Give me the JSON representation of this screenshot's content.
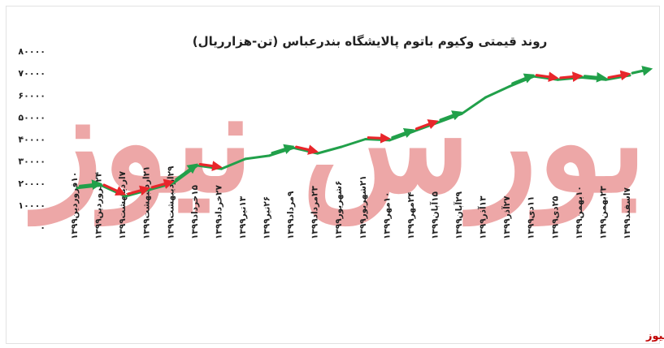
{
  "chart_data": {
    "type": "line",
    "title": "روند قیمتی وکیوم باتوم پالایشگاه بندرعباس (تن-هزارریال)",
    "xlabel": "",
    "ylabel": "",
    "ylim": [
      0,
      80000
    ],
    "yticks": [
      "۸۰۰۰۰",
      "۷۰۰۰۰",
      "۶۰۰۰۰",
      "۵۰۰۰۰",
      "۴۰۰۰۰",
      "۳۰۰۰۰",
      "۲۰۰۰۰",
      "۱۰۰۰۰",
      "۰"
    ],
    "categories": [
      "۱۰فروردین۱۳۹۹",
      "۲۴فروردین۱۳۹۹",
      "۷اردیبهشت۱۳۹۹",
      "۲۱اردیبهشت۱۳۹۹",
      "۲۹اردیبهشت۱۳۹۹",
      "۱۵خرداد۱۳۹۹",
      "۲۷خرداد۱۳۹۹",
      "۱۳تیر۱۳۹۹",
      "۲۶تیر۱۳۹۹",
      "۹مرداد۱۳۹۹",
      "۲۳مرداد۱۳۹۹",
      "۶شهریور۱۳۹۹",
      "۲۱شهریور۱۳۹۹",
      "۱۰مهر۱۳۹۹",
      "۲۴مهر۱۳۹۹",
      "۱۵آبان۱۳۹۹",
      "۲۹آبان۱۳۹۹",
      "۱۳آذر۱۳۹۹",
      "۲۷آذر۱۳۹۹",
      "۱۱دی۱۳۹۹",
      "۲۵دی۱۳۹۹",
      "۱۰بهمن۱۳۹۹",
      "۲۳بهمن۱۳۹۹",
      "۷اسفند۱۳۹۹"
    ],
    "series": [
      {
        "name": "",
        "color": "#21a04a",
        "values": [
          17800,
          19000,
          14000,
          17000,
          20000,
          28000,
          26500,
          31000,
          32500,
          36000,
          33500,
          36500,
          40000,
          39500,
          43500,
          47500,
          51500,
          59000,
          64000,
          68500,
          67000,
          68000,
          67000,
          69000
        ]
      }
    ],
    "grid": false,
    "legend": "none",
    "arrows": [
      {
        "from": 0,
        "to": 1,
        "color": "#21a04a"
      },
      {
        "from": 1,
        "to": 2,
        "color": "#e8262b"
      },
      {
        "from": 2,
        "to": 3,
        "color": "#e8262b"
      },
      {
        "from": 3,
        "to": 4,
        "color": "#e8262b"
      },
      {
        "from": 4,
        "to": 5,
        "color": "#21a04a"
      },
      {
        "from": 5,
        "to": 6,
        "color": "#e8262b"
      },
      {
        "from": 8,
        "to": 9,
        "color": "#21a04a"
      },
      {
        "from": 9,
        "to": 10,
        "color": "#e8262b"
      },
      {
        "from": 12,
        "to": 13,
        "color": "#e8262b"
      },
      {
        "from": 13,
        "to": 14,
        "color": "#21a04a"
      },
      {
        "from": 14,
        "to": 15,
        "color": "#e8262b"
      },
      {
        "from": 15,
        "to": 16,
        "color": "#21a04a"
      },
      {
        "from": 18,
        "to": 19,
        "color": "#21a04a"
      },
      {
        "from": 19,
        "to": 20,
        "color": "#e8262b"
      },
      {
        "from": 20,
        "to": 21,
        "color": "#e8262b"
      },
      {
        "from": 21,
        "to": 22,
        "color": "#21a04a"
      },
      {
        "from": 22,
        "to": 23,
        "color": "#e8262b"
      },
      {
        "from": 23,
        "to": 24,
        "color": "#21a04a"
      }
    ]
  },
  "watermark": {
    "text": "بورس نیوز",
    "color": "#e06060"
  },
  "footer": {
    "brand": "بورس نیوز",
    "brand_color": "#c00000"
  }
}
